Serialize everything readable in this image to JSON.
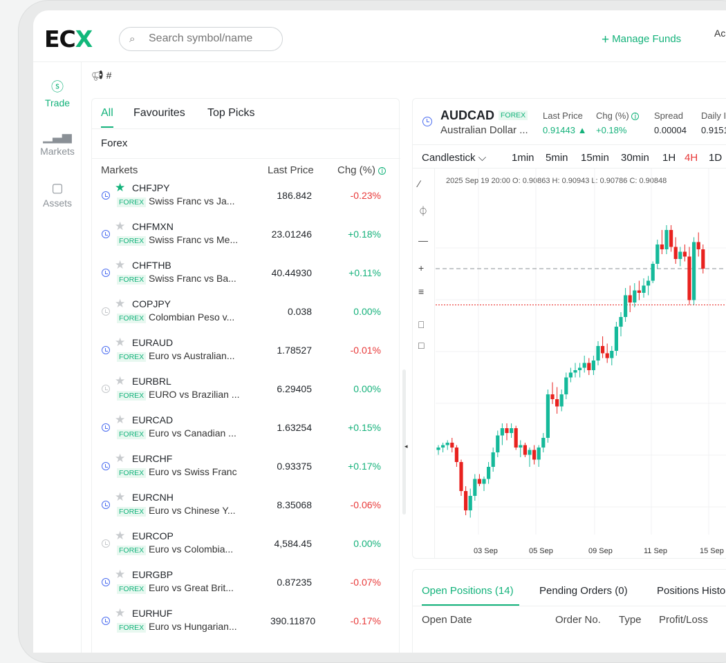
{
  "header": {
    "logo": "ECX",
    "search_placeholder": "Search symbol/name",
    "manage_funds": "Manage Funds",
    "account_label": "Ac"
  },
  "sidebar": {
    "items": [
      {
        "label": "Trade",
        "icon": "coins-icon",
        "active": true
      },
      {
        "label": "Markets",
        "icon": "bars-icon",
        "active": false
      },
      {
        "label": "Assets",
        "icon": "wallet-icon",
        "active": false
      }
    ]
  },
  "announcement": {
    "text": "#"
  },
  "markets": {
    "tabs": [
      "All",
      "Favourites",
      "Top Picks"
    ],
    "active_tab": "All",
    "category": "Forex",
    "columns": {
      "market": "Markets",
      "price": "Last Price",
      "change": "Chg (%)"
    },
    "rows": [
      {
        "symbol": "CHFJPY",
        "type": "FOREX",
        "name": "Swiss Franc vs Ja...",
        "price": "186.842",
        "change": "-0.23%",
        "dir": "dn",
        "fav": true,
        "open": true
      },
      {
        "symbol": "CHFMXN",
        "type": "FOREX",
        "name": "Swiss Franc vs Me...",
        "price": "23.01246",
        "change": "+0.18%",
        "dir": "up",
        "fav": false,
        "open": true
      },
      {
        "symbol": "CHFTHB",
        "type": "FOREX",
        "name": "Swiss Franc vs Ba...",
        "price": "40.44930",
        "change": "+0.11%",
        "dir": "up",
        "fav": false,
        "open": true
      },
      {
        "symbol": "COPJPY",
        "type": "FOREX",
        "name": "Colombian Peso v...",
        "price": "0.038",
        "change": "0.00%",
        "dir": "flat",
        "fav": false,
        "open": false
      },
      {
        "symbol": "EURAUD",
        "type": "FOREX",
        "name": "Euro vs Australian...",
        "price": "1.78527",
        "change": "-0.01%",
        "dir": "dn",
        "fav": false,
        "open": true
      },
      {
        "symbol": "EURBRL",
        "type": "FOREX",
        "name": "EURO vs Brazilian ...",
        "price": "6.29405",
        "change": "0.00%",
        "dir": "flat",
        "fav": false,
        "open": false
      },
      {
        "symbol": "EURCAD",
        "type": "FOREX",
        "name": "Euro vs Canadian ...",
        "price": "1.63254",
        "change": "+0.15%",
        "dir": "up",
        "fav": false,
        "open": true
      },
      {
        "symbol": "EURCHF",
        "type": "FOREX",
        "name": "Euro vs Swiss Franc",
        "price": "0.93375",
        "change": "+0.17%",
        "dir": "up",
        "fav": false,
        "open": true
      },
      {
        "symbol": "EURCNH",
        "type": "FOREX",
        "name": "Euro vs Chinese Y...",
        "price": "8.35068",
        "change": "-0.06%",
        "dir": "dn",
        "fav": false,
        "open": true
      },
      {
        "symbol": "EURCOP",
        "type": "FOREX",
        "name": "Euro vs Colombia...",
        "price": "4,584.45",
        "change": "0.00%",
        "dir": "flat",
        "fav": false,
        "open": false
      },
      {
        "symbol": "EURGBP",
        "type": "FOREX",
        "name": "Euro vs Great Brit...",
        "price": "0.87235",
        "change": "-0.07%",
        "dir": "dn",
        "fav": false,
        "open": true
      },
      {
        "symbol": "EURHUF",
        "type": "FOREX",
        "name": "Euro vs Hungarian...",
        "price": "390.11870",
        "change": "-0.17%",
        "dir": "dn",
        "fav": false,
        "open": true
      }
    ]
  },
  "chart": {
    "symbol": "AUDCAD",
    "type_tag": "FOREX",
    "name": "Australian Dollar ...",
    "stats": {
      "last_price_label": "Last Price",
      "last_price": "0.91443",
      "chg_label": "Chg (%)",
      "chg": "+0.18%",
      "spread_label": "Spread",
      "spread": "0.00004",
      "daily_label": "Daily I",
      "daily": "0.9151"
    },
    "chart_type": "Candlestick",
    "timeframes": [
      "1min",
      "5min",
      "15min",
      "30min",
      "1H",
      "4H",
      "1D"
    ],
    "active_timeframe": "4H",
    "ohlc": "2025 Sep 19  20:00  O: 0.90863  H: 0.90943  L: 0.90786  C: 0.90848",
    "x_ticks": [
      "03 Sep",
      "05 Sep",
      "09 Sep",
      "11 Sep",
      "15 Sep"
    ],
    "up_color": "#15b99a",
    "down_color": "#e8221f"
  },
  "chart_data": {
    "type": "candlestick",
    "x_ticks": [
      "03 Sep",
      "05 Sep",
      "09 Sep",
      "11 Sep",
      "15 Sep"
    ],
    "candles": [
      [
        0.8965,
        0.8967,
        0.8963,
        0.8966
      ],
      [
        0.8966,
        0.8968,
        0.8964,
        0.8967
      ],
      [
        0.8967,
        0.8969,
        0.8965,
        0.8968
      ],
      [
        0.8968,
        0.897,
        0.8964,
        0.8966
      ],
      [
        0.8966,
        0.8967,
        0.8958,
        0.896
      ],
      [
        0.896,
        0.8961,
        0.8946,
        0.8948
      ],
      [
        0.8948,
        0.895,
        0.8938,
        0.894
      ],
      [
        0.894,
        0.8949,
        0.8937,
        0.8946
      ],
      [
        0.8946,
        0.8955,
        0.8944,
        0.8953
      ],
      [
        0.8953,
        0.8955,
        0.895,
        0.8951
      ],
      [
        0.8951,
        0.8954,
        0.8948,
        0.8953
      ],
      [
        0.8953,
        0.896,
        0.8951,
        0.8958
      ],
      [
        0.8958,
        0.8966,
        0.8956,
        0.8964
      ],
      [
        0.8964,
        0.8973,
        0.8962,
        0.8971
      ],
      [
        0.8971,
        0.8976,
        0.8967,
        0.8974
      ],
      [
        0.8974,
        0.8976,
        0.8969,
        0.8972
      ],
      [
        0.8972,
        0.8976,
        0.897,
        0.8974
      ],
      [
        0.8974,
        0.8975,
        0.8965,
        0.8966
      ],
      [
        0.8966,
        0.8969,
        0.8962,
        0.8967
      ],
      [
        0.8967,
        0.8968,
        0.8962,
        0.8963
      ],
      [
        0.8963,
        0.8966,
        0.8958,
        0.8965
      ],
      [
        0.8965,
        0.8967,
        0.8959,
        0.8961
      ],
      [
        0.8961,
        0.8967,
        0.8958,
        0.8966
      ],
      [
        0.8966,
        0.8972,
        0.8964,
        0.897
      ],
      [
        0.897,
        0.899,
        0.8968,
        0.8988
      ],
      [
        0.8988,
        0.8993,
        0.8984,
        0.8986
      ],
      [
        0.8986,
        0.8991,
        0.898,
        0.8983
      ],
      [
        0.8983,
        0.899,
        0.8981,
        0.8988
      ],
      [
        0.8988,
        0.8997,
        0.8986,
        0.8995
      ],
      [
        0.8995,
        0.8999,
        0.8993,
        0.8997
      ],
      [
        0.8997,
        0.9001,
        0.8995,
        0.8998
      ],
      [
        0.8998,
        0.9001,
        0.8995,
        0.8999
      ],
      [
        0.8999,
        0.9004,
        0.8997,
        0.9001
      ],
      [
        0.9001,
        0.9003,
        0.8996,
        0.8998
      ],
      [
        0.8998,
        0.9004,
        0.8996,
        0.9002
      ],
      [
        0.9002,
        0.901,
        0.9,
        0.9008
      ],
      [
        0.9008,
        0.9012,
        0.9003,
        0.9005
      ],
      [
        0.9005,
        0.9009,
        0.9001,
        0.9003
      ],
      [
        0.9003,
        0.9008,
        0.9,
        0.9006
      ],
      [
        0.9006,
        0.9018,
        0.9004,
        0.9016
      ],
      [
        0.9016,
        0.9022,
        0.9012,
        0.902
      ],
      [
        0.902,
        0.9032,
        0.9018,
        0.9029
      ],
      [
        0.9029,
        0.9033,
        0.9022,
        0.9026
      ],
      [
        0.9026,
        0.9034,
        0.9024,
        0.9031
      ],
      [
        0.9031,
        0.9035,
        0.9027,
        0.903
      ],
      [
        0.903,
        0.9036,
        0.9028,
        0.9033
      ],
      [
        0.9033,
        0.9037,
        0.9029,
        0.9035
      ],
      [
        0.9035,
        0.9043,
        0.9034,
        0.9042
      ],
      [
        0.9042,
        0.9052,
        0.904,
        0.905
      ],
      [
        0.905,
        0.9056,
        0.9046,
        0.9048
      ],
      [
        0.9048,
        0.9058,
        0.9046,
        0.9056
      ],
      [
        0.9056,
        0.9058,
        0.9047,
        0.9049
      ],
      [
        0.9049,
        0.9053,
        0.9042,
        0.9044
      ],
      [
        0.9044,
        0.9049,
        0.9041,
        0.9047
      ],
      [
        0.9047,
        0.905,
        0.9043,
        0.9045
      ],
      [
        0.9045,
        0.9049,
        0.9025,
        0.9027
      ],
      [
        0.9027,
        0.9053,
        0.9025,
        0.9051
      ],
      [
        0.9051,
        0.9055,
        0.9045,
        0.9048
      ],
      [
        0.9048,
        0.905,
        0.9038,
        0.904
      ]
    ],
    "reference_lines": {
      "dashed": 0.904,
      "dotted_red": 0.9025
    },
    "last_price": 0.91443,
    "ohlc_readout": {
      "time": "2025 Sep 19 20:00",
      "O": 0.90863,
      "H": 0.90943,
      "L": 0.90786,
      "C": 0.90848
    }
  },
  "positions": {
    "tabs": [
      "Open Positions (14)",
      "Pending Orders (0)",
      "Positions Histo"
    ],
    "active_tab": "Open Positions (14)",
    "columns": [
      "Open Date",
      "Order No.",
      "Type",
      "Profit/Loss"
    ]
  }
}
